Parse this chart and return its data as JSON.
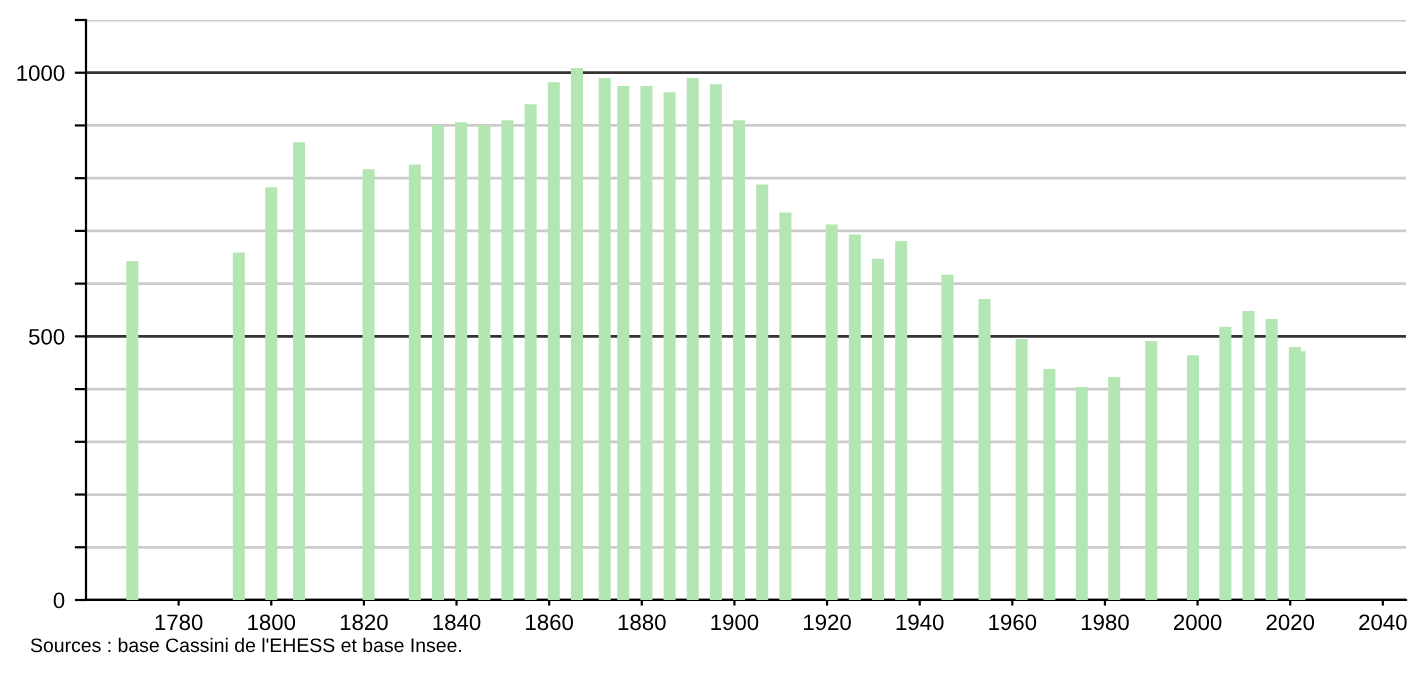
{
  "chart_data": {
    "type": "bar",
    "color": "#b3e6b3",
    "x": [
      1770,
      1793,
      1800,
      1806,
      1821,
      1831,
      1836,
      1841,
      1846,
      1851,
      1856,
      1861,
      1866,
      1872,
      1876,
      1881,
      1886,
      1891,
      1896,
      1901,
      1906,
      1911,
      1921,
      1926,
      1931,
      1936,
      1946,
      1954,
      1962,
      1968,
      1975,
      1982,
      1990,
      1999,
      2006,
      2011,
      2016,
      2021,
      2022
    ],
    "values": [
      643,
      659,
      783,
      868,
      817,
      826,
      901,
      906,
      901,
      910,
      940,
      982,
      1009,
      990,
      975,
      975,
      963,
      990,
      978,
      910,
      788,
      735,
      712,
      693,
      647,
      681,
      617,
      571,
      495,
      438,
      404,
      423,
      491,
      464,
      518,
      548,
      533,
      480,
      472
    ],
    "xlim": [
      1760,
      2045
    ],
    "xticks": [
      1780,
      1800,
      1820,
      1840,
      1860,
      1880,
      1900,
      1920,
      1940,
      1960,
      1980,
      2000,
      2020,
      2040
    ],
    "ylim": [
      0,
      1100
    ],
    "yticks": [
      0,
      {
        "value": 100,
        "label": null
      },
      {
        "value": 200,
        "label": null
      },
      {
        "value": 300,
        "label": null
      },
      {
        "value": 400,
        "label": null
      },
      500,
      {
        "value": 600,
        "label": null
      },
      {
        "value": 700,
        "label": null
      },
      {
        "value": 800,
        "label": null
      },
      {
        "value": 900,
        "label": null
      },
      1000,
      {
        "value": 1100,
        "label": null
      }
    ],
    "grid": "y",
    "annotations": [
      "Sources : base Cassini de l'EHESS et base Insee."
    ]
  }
}
